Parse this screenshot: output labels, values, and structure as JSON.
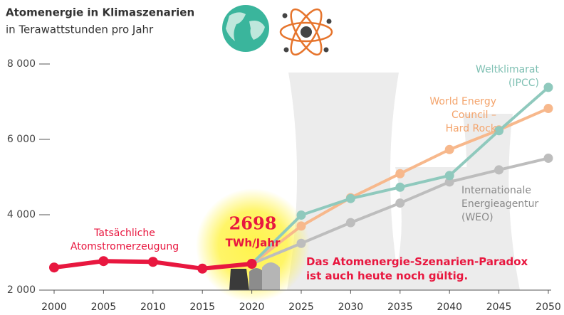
{
  "chart_data": {
    "type": "line",
    "title": "Atomenergie in Klimaszenarien",
    "subtitle": "in Terawattstunden pro Jahr",
    "x": [
      2000,
      2005,
      2010,
      2015,
      2020,
      2025,
      2030,
      2035,
      2040,
      2045,
      2050
    ],
    "xlim": [
      2000,
      2050
    ],
    "xticks": [
      2000,
      2005,
      2010,
      2015,
      2020,
      2025,
      2030,
      2035,
      2040,
      2045,
      2050
    ],
    "ylim": [
      2000,
      8000
    ],
    "yticks": [
      {
        "value": 2000,
        "label": "2 000"
      },
      {
        "value": 4000,
        "label": "4 000"
      },
      {
        "value": 6000,
        "label": "6 000"
      },
      {
        "value": 8000,
        "label": "8 000"
      }
    ],
    "grid": false,
    "series": [
      {
        "name": "Tatsächliche\nAtomstromerzeugung",
        "color": "#e8173f",
        "values": [
          2600,
          2770,
          2750,
          2570,
          2698,
          null,
          null,
          null,
          null,
          null,
          null
        ]
      },
      {
        "name": "Weltklimarat\n(IPCC)",
        "color": "#8fc9bd",
        "values": [
          null,
          null,
          null,
          null,
          2698,
          3990,
          4430,
          4730,
          5040,
          6230,
          7380
        ]
      },
      {
        "name": "World Energy\nCouncil –\nHard Rock",
        "color": "#f7b88c",
        "values": [
          null,
          null,
          null,
          null,
          2698,
          3700,
          4450,
          5090,
          5730,
          6250,
          6820
        ]
      },
      {
        "name": "Internationale\nEnergieagentur\n(WEO)",
        "color": "#bdbdbd",
        "values": [
          null,
          null,
          null,
          null,
          2698,
          3240,
          3790,
          4310,
          4870,
          5190,
          5500
        ]
      }
    ],
    "unit_label": "TWh/Jahr",
    "annotation": "Das Atomenergie-Szenarien-Paradox\nist auch heute noch gültig."
  }
}
